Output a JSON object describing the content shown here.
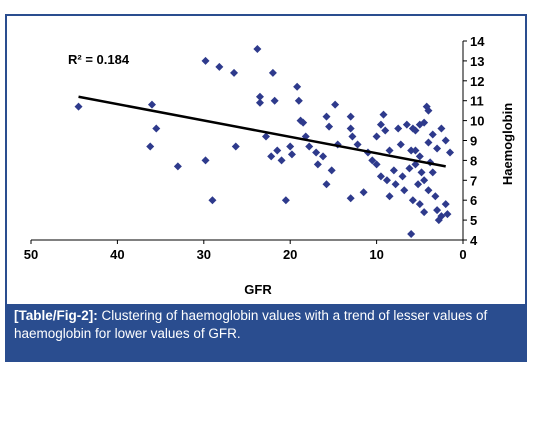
{
  "figure": {
    "caption_label": "[Table/Fig-2]:",
    "caption_text": " Clustering of haemoglobin values with a trend of lesser values of haemoglobin for lower values of GFR."
  },
  "chart_data": {
    "type": "scatter",
    "xlabel": "GFR",
    "ylabel": "Haemoglobin",
    "xlim": [
      50,
      0
    ],
    "ylim": [
      4,
      14
    ],
    "x_reversed": true,
    "x_ticks": [
      50,
      40,
      30,
      20,
      10,
      0
    ],
    "y_ticks": [
      4,
      5,
      6,
      7,
      8,
      9,
      10,
      11,
      12,
      13,
      14
    ],
    "x_tick_labels": [
      "50",
      "40",
      "30",
      "20",
      "10",
      "0"
    ],
    "y_tick_labels": [
      "4",
      "5",
      "6",
      "7",
      "8",
      "9",
      "10",
      "11",
      "12",
      "13",
      "14"
    ],
    "annotation": "R² = 0.184",
    "trendline": {
      "x": [
        44.5,
        2
      ],
      "y": [
        11.2,
        7.7
      ]
    },
    "marker_color": "#2e3a8c",
    "line_color": "#000000",
    "grid": false,
    "points": [
      [
        44.5,
        10.7
      ],
      [
        36,
        10.8
      ],
      [
        36.2,
        8.7
      ],
      [
        35.5,
        9.6
      ],
      [
        33,
        7.7
      ],
      [
        29.8,
        13
      ],
      [
        28.2,
        12.7
      ],
      [
        29.8,
        8
      ],
      [
        29,
        6
      ],
      [
        26.5,
        12.4
      ],
      [
        26.3,
        8.7
      ],
      [
        23.8,
        13.6
      ],
      [
        23.5,
        11.2
      ],
      [
        23.5,
        10.9
      ],
      [
        22.8,
        9.2
      ],
      [
        22.2,
        8.2
      ],
      [
        21.5,
        8.5
      ],
      [
        22,
        12.4
      ],
      [
        21.8,
        11
      ],
      [
        21,
        8
      ],
      [
        20.5,
        6
      ],
      [
        20,
        8.7
      ],
      [
        19.8,
        8.3
      ],
      [
        19.2,
        11.7
      ],
      [
        19,
        11
      ],
      [
        18.8,
        10
      ],
      [
        18.5,
        9.9
      ],
      [
        18.2,
        9.2
      ],
      [
        17.8,
        8.7
      ],
      [
        17,
        8.4
      ],
      [
        16.8,
        7.8
      ],
      [
        16.2,
        8.2
      ],
      [
        15.8,
        10.2
      ],
      [
        15.8,
        6.8
      ],
      [
        15.5,
        9.7
      ],
      [
        15.2,
        7.5
      ],
      [
        14.8,
        10.8
      ],
      [
        14.5,
        8.8
      ],
      [
        13,
        10.2
      ],
      [
        13,
        9.6
      ],
      [
        12.8,
        9.2
      ],
      [
        13,
        6.1
      ],
      [
        12.2,
        8.8
      ],
      [
        11,
        8.4
      ],
      [
        10.5,
        8
      ],
      [
        10,
        7.8
      ],
      [
        10,
        9.2
      ],
      [
        9.5,
        9.8
      ],
      [
        9.2,
        10.3
      ],
      [
        9,
        9.5
      ],
      [
        8.8,
        7
      ],
      [
        8.5,
        8.5
      ],
      [
        8.5,
        6.2
      ],
      [
        8,
        7.5
      ],
      [
        7.5,
        9.6
      ],
      [
        7.2,
        8.8
      ],
      [
        7,
        7.2
      ],
      [
        6.8,
        6.5
      ],
      [
        6.5,
        9.8
      ],
      [
        6,
        8.5
      ],
      [
        6,
        4.3
      ],
      [
        5.8,
        9.6
      ],
      [
        5.5,
        9.5
      ],
      [
        5.5,
        8.5
      ],
      [
        5.5,
        7.8
      ],
      [
        5.2,
        6.8
      ],
      [
        5,
        9.8
      ],
      [
        5,
        8.2
      ],
      [
        5,
        5.8
      ],
      [
        4.8,
        7.4
      ],
      [
        4.5,
        9.9
      ],
      [
        4.5,
        7
      ],
      [
        4.5,
        5.4
      ],
      [
        4.2,
        10.7
      ],
      [
        4,
        10.5
      ],
      [
        4,
        8.9
      ],
      [
        4,
        6.5
      ],
      [
        3.5,
        9.3
      ],
      [
        3.5,
        7.4
      ],
      [
        3.2,
        6.2
      ],
      [
        3,
        8.6
      ],
      [
        3,
        5.5
      ],
      [
        2.5,
        9.6
      ],
      [
        2.5,
        5.2
      ],
      [
        2,
        9
      ],
      [
        2,
        5.8
      ],
      [
        1.8,
        5.3
      ],
      [
        1.5,
        8.4
      ],
      [
        6.2,
        7.6
      ],
      [
        7.8,
        6.8
      ],
      [
        9.5,
        7.2
      ],
      [
        11.5,
        6.4
      ],
      [
        3.8,
        7.9
      ],
      [
        5.8,
        6.0
      ],
      [
        2.8,
        5.0
      ]
    ]
  }
}
